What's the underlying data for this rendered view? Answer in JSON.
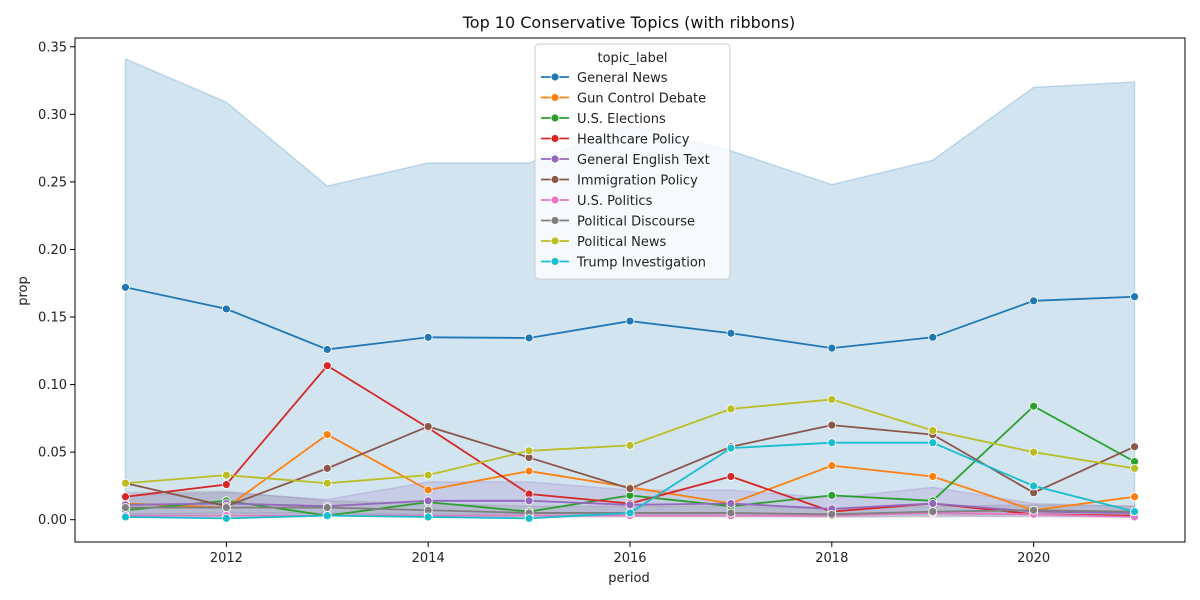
{
  "chart_data": {
    "type": "line",
    "title": "Top 10 Conservative Topics (with ribbons)",
    "xlabel": "period",
    "ylabel": "prop",
    "xlim": [
      2010.5,
      2021.5
    ],
    "ylim": [
      -0.0165,
      0.3565
    ],
    "x_ticks": [
      2012,
      2014,
      2016,
      2018,
      2020
    ],
    "x_tick_labels": [
      "2012",
      "2014",
      "2016",
      "2018",
      "2020"
    ],
    "y_ticks": [
      0.0,
      0.05,
      0.1,
      0.15,
      0.2,
      0.25,
      0.3,
      0.35
    ],
    "y_tick_labels": [
      "0.00",
      "0.05",
      "0.10",
      "0.15",
      "0.20",
      "0.25",
      "0.30",
      "0.35"
    ],
    "grid": false,
    "legend": {
      "title": "topic_label",
      "placement": "top-center"
    },
    "x": [
      2011,
      2012,
      2013,
      2014,
      2015,
      2016,
      2017,
      2018,
      2019,
      2020,
      2021
    ],
    "series": [
      {
        "name": "General News",
        "color": "#1f77b4",
        "values": [
          0.172,
          0.156,
          0.126,
          0.135,
          0.1345,
          0.147,
          0.138,
          0.127,
          0.135,
          0.162,
          0.165
        ],
        "ribbon_upper": [
          0.341,
          0.309,
          0.247,
          0.264,
          0.264,
          0.292,
          0.273,
          0.248,
          0.266,
          0.32,
          0.324
        ],
        "ribbon_lower": [
          0.004,
          0.004,
          0.004,
          0.004,
          0.004,
          0.004,
          0.004,
          0.004,
          0.004,
          0.004,
          0.004
        ]
      },
      {
        "name": "Gun Control Debate",
        "color": "#ff7f0e",
        "values": [
          0.012,
          0.009,
          0.063,
          0.022,
          0.036,
          0.024,
          0.012,
          0.04,
          0.032,
          0.007,
          0.017
        ]
      },
      {
        "name": "U.S. Elections",
        "color": "#2ca02c",
        "values": [
          0.007,
          0.014,
          0.003,
          0.013,
          0.006,
          0.018,
          0.01,
          0.018,
          0.014,
          0.084,
          0.043
        ]
      },
      {
        "name": "Healthcare Policy",
        "color": "#d62728",
        "values": [
          0.017,
          0.026,
          0.114,
          0.068,
          0.019,
          0.012,
          0.032,
          0.006,
          0.012,
          0.004,
          0.003
        ]
      },
      {
        "name": "General English Text",
        "color": "#9467bd",
        "values": [
          0.011,
          0.012,
          0.01,
          0.014,
          0.014,
          0.011,
          0.012,
          0.008,
          0.012,
          0.006,
          0.005
        ],
        "ribbon_upper": [
          0.018,
          0.02,
          0.015,
          0.028,
          0.028,
          0.022,
          0.022,
          0.016,
          0.024,
          0.012,
          0.01
        ],
        "ribbon_lower": [
          0.004,
          0.005,
          0.005,
          0.003,
          0.003,
          0.003,
          0.003,
          0.002,
          0.003,
          0.002,
          0.002
        ]
      },
      {
        "name": "Immigration Policy",
        "color": "#8c564b",
        "values": [
          0.027,
          0.01,
          0.038,
          0.069,
          0.046,
          0.023,
          0.054,
          0.07,
          0.063,
          0.02,
          0.054
        ]
      },
      {
        "name": "U.S. Politics",
        "color": "#e377c2",
        "values": [
          0.003,
          0.003,
          0.003,
          0.003,
          0.003,
          0.003,
          0.003,
          0.003,
          0.005,
          0.004,
          0.002
        ]
      },
      {
        "name": "Political Discourse",
        "color": "#7f7f7f",
        "values": [
          0.009,
          0.009,
          0.009,
          0.007,
          0.005,
          0.005,
          0.005,
          0.004,
          0.006,
          0.007,
          0.006
        ],
        "ribbon_upper": [
          0.02,
          0.021,
          0.014,
          0.012,
          0.01,
          0.01,
          0.01,
          0.008,
          0.01,
          0.011,
          0.01
        ],
        "ribbon_lower": [
          0.002,
          0.002,
          0.003,
          0.002,
          0.002,
          0.002,
          0.002,
          0.002,
          0.002,
          0.003,
          0.002
        ]
      },
      {
        "name": "Political News",
        "color": "#bcbd22",
        "values": [
          0.027,
          0.033,
          0.027,
          0.033,
          0.051,
          0.055,
          0.082,
          0.089,
          0.066,
          0.05,
          0.038
        ]
      },
      {
        "name": "Trump Investigation",
        "color": "#17becf",
        "values": [
          0.002,
          0.001,
          0.003,
          0.002,
          0.001,
          0.005,
          0.053,
          0.057,
          0.057,
          0.025,
          0.006
        ]
      }
    ]
  }
}
